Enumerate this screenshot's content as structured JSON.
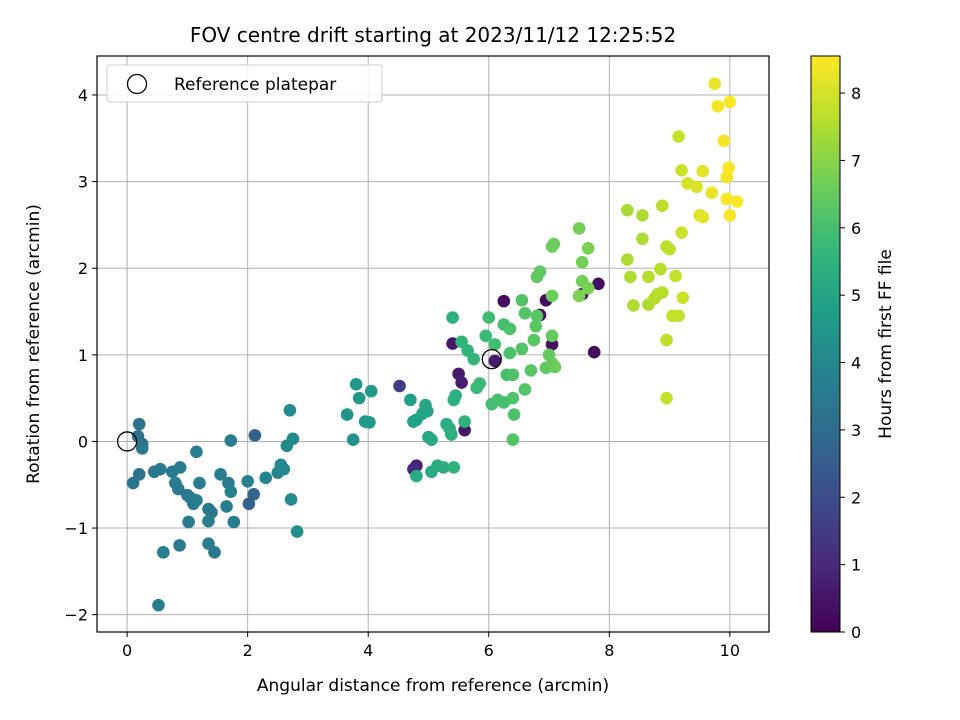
{
  "chart_data": {
    "type": "scatter",
    "title": "FOV centre drift starting at 2023/11/12 12:25:52",
    "xlabel": "Angular distance from reference (arcmin)",
    "ylabel": "Rotation from reference (arcmin)",
    "xlim": [
      -0.5,
      10.65
    ],
    "ylim": [
      -2.2,
      4.45
    ],
    "xticks": [
      "0",
      "2",
      "4",
      "6",
      "8",
      "10"
    ],
    "xtick_values": [
      0,
      2,
      4,
      6,
      8,
      10
    ],
    "yticks": [
      "−2",
      "−1",
      "0",
      "1",
      "2",
      "3",
      "4"
    ],
    "ytick_values": [
      -2,
      -1,
      0,
      1,
      2,
      3,
      4
    ],
    "grid": true,
    "legend": {
      "placement": "top-left",
      "entries": [
        {
          "label": "Reference platepar",
          "marker": "open-circle"
        }
      ]
    },
    "colormap": "viridis",
    "colorbar": {
      "label": "Hours from first FF file",
      "range": [
        0,
        8.55
      ],
      "ticks": [
        "0",
        "1",
        "2",
        "3",
        "4",
        "5",
        "6",
        "7",
        "8"
      ],
      "tick_values": [
        0,
        1,
        2,
        3,
        4,
        5,
        6,
        7,
        8
      ]
    },
    "reference_points": [
      {
        "x": 0,
        "y": 0
      },
      {
        "x": 6.05,
        "y": 0.95
      }
    ],
    "points": [
      {
        "x": 6.25,
        "y": 1.62,
        "c": 0.3
      },
      {
        "x": 6.95,
        "y": 1.63,
        "c": 0.3
      },
      {
        "x": 6.85,
        "y": 1.46,
        "c": 0.3
      },
      {
        "x": 7.82,
        "y": 1.82,
        "c": 0.35
      },
      {
        "x": 7.75,
        "y": 1.03,
        "c": 0.3
      },
      {
        "x": 7.05,
        "y": 1.12,
        "c": 0.4
      },
      {
        "x": 7.55,
        "y": 1.7,
        "c": 0.45
      },
      {
        "x": 5.4,
        "y": 1.13,
        "c": 0.5
      },
      {
        "x": 5.6,
        "y": 0.13,
        "c": 0.5
      },
      {
        "x": 5.5,
        "y": 0.78,
        "c": 0.6
      },
      {
        "x": 5.55,
        "y": 0.68,
        "c": 0.7
      },
      {
        "x": 6.1,
        "y": 0.93,
        "c": 0.6
      },
      {
        "x": 4.8,
        "y": -0.28,
        "c": 0.8
      },
      {
        "x": 4.75,
        "y": -0.32,
        "c": 1.0
      },
      {
        "x": 4.52,
        "y": 0.64,
        "c": 1.5
      },
      {
        "x": 2.12,
        "y": 0.07,
        "c": 2.7
      },
      {
        "x": 2.02,
        "y": -0.72,
        "c": 2.6
      },
      {
        "x": 2.1,
        "y": -0.61,
        "c": 2.8
      },
      {
        "x": 0.18,
        "y": 0.06,
        "c": 3.2
      },
      {
        "x": 0.2,
        "y": 0.2,
        "c": 3.3
      },
      {
        "x": 0.25,
        "y": -0.03,
        "c": 3.3
      },
      {
        "x": 0.25,
        "y": -0.08,
        "c": 3.4
      },
      {
        "x": 0.1,
        "y": -0.48,
        "c": 3.3
      },
      {
        "x": 0.2,
        "y": -0.38,
        "c": 3.3
      },
      {
        "x": 0.45,
        "y": -0.35,
        "c": 3.4
      },
      {
        "x": 0.55,
        "y": -0.32,
        "c": 3.5
      },
      {
        "x": 0.75,
        "y": -0.35,
        "c": 3.5
      },
      {
        "x": 0.88,
        "y": -0.3,
        "c": 3.5
      },
      {
        "x": 0.8,
        "y": -0.48,
        "c": 3.6
      },
      {
        "x": 0.85,
        "y": -0.55,
        "c": 3.5
      },
      {
        "x": 1.0,
        "y": -0.62,
        "c": 3.4
      },
      {
        "x": 1.05,
        "y": -0.65,
        "c": 3.5
      },
      {
        "x": 1.1,
        "y": -0.72,
        "c": 3.5
      },
      {
        "x": 1.15,
        "y": -0.68,
        "c": 3.6
      },
      {
        "x": 1.02,
        "y": -0.93,
        "c": 3.5
      },
      {
        "x": 1.2,
        "y": -0.48,
        "c": 3.6
      },
      {
        "x": 1.15,
        "y": -0.12,
        "c": 3.6
      },
      {
        "x": 0.6,
        "y": -1.28,
        "c": 3.6
      },
      {
        "x": 0.87,
        "y": -1.2,
        "c": 3.5
      },
      {
        "x": 1.35,
        "y": -0.78,
        "c": 3.5
      },
      {
        "x": 1.4,
        "y": -0.82,
        "c": 3.4
      },
      {
        "x": 1.35,
        "y": -0.92,
        "c": 3.6
      },
      {
        "x": 1.35,
        "y": -1.18,
        "c": 3.6
      },
      {
        "x": 1.45,
        "y": -1.28,
        "c": 3.4
      },
      {
        "x": 0.52,
        "y": -1.89,
        "c": 3.6
      },
      {
        "x": 1.55,
        "y": -0.38,
        "c": 3.6
      },
      {
        "x": 1.68,
        "y": -0.48,
        "c": 3.5
      },
      {
        "x": 1.72,
        "y": -0.58,
        "c": 3.7
      },
      {
        "x": 1.65,
        "y": -0.75,
        "c": 3.6
      },
      {
        "x": 1.77,
        "y": -0.93,
        "c": 3.7
      },
      {
        "x": 1.72,
        "y": 0.01,
        "c": 3.6
      },
      {
        "x": 2.0,
        "y": -0.46,
        "c": 3.8
      },
      {
        "x": 2.3,
        "y": -0.42,
        "c": 3.9
      },
      {
        "x": 2.5,
        "y": -0.36,
        "c": 3.9
      },
      {
        "x": 2.6,
        "y": -0.32,
        "c": 4.0
      },
      {
        "x": 2.65,
        "y": -0.05,
        "c": 4.0
      },
      {
        "x": 2.55,
        "y": -0.27,
        "c": 4.0
      },
      {
        "x": 2.75,
        "y": 0.03,
        "c": 4.1
      },
      {
        "x": 2.7,
        "y": 0.36,
        "c": 4.1
      },
      {
        "x": 2.72,
        "y": -0.67,
        "c": 4.1
      },
      {
        "x": 2.82,
        "y": -1.04,
        "c": 4.2
      },
      {
        "x": 3.75,
        "y": 0.02,
        "c": 4.3
      },
      {
        "x": 3.65,
        "y": 0.31,
        "c": 4.4
      },
      {
        "x": 3.8,
        "y": 0.66,
        "c": 4.5
      },
      {
        "x": 3.85,
        "y": 0.5,
        "c": 4.5
      },
      {
        "x": 3.95,
        "y": 0.23,
        "c": 4.5
      },
      {
        "x": 4.02,
        "y": 0.22,
        "c": 4.6
      },
      {
        "x": 4.05,
        "y": 0.58,
        "c": 4.6
      },
      {
        "x": 4.7,
        "y": 0.48,
        "c": 4.8
      },
      {
        "x": 4.8,
        "y": 0.25,
        "c": 4.9
      },
      {
        "x": 4.75,
        "y": 0.23,
        "c": 4.9
      },
      {
        "x": 4.9,
        "y": 0.32,
        "c": 5.0
      },
      {
        "x": 4.95,
        "y": 0.42,
        "c": 5.0
      },
      {
        "x": 4.98,
        "y": 0.35,
        "c": 5.0
      },
      {
        "x": 5.0,
        "y": 0.05,
        "c": 5.1
      },
      {
        "x": 5.05,
        "y": 0.02,
        "c": 5.1
      },
      {
        "x": 5.05,
        "y": -0.35,
        "c": 5.2
      },
      {
        "x": 5.15,
        "y": -0.28,
        "c": 5.2
      },
      {
        "x": 4.8,
        "y": -0.4,
        "c": 5.2
      },
      {
        "x": 5.25,
        "y": -0.3,
        "c": 5.3
      },
      {
        "x": 5.3,
        "y": 0.2,
        "c": 5.3
      },
      {
        "x": 5.35,
        "y": 0.15,
        "c": 5.3
      },
      {
        "x": 5.38,
        "y": 0.08,
        "c": 5.4
      },
      {
        "x": 5.42,
        "y": 0.48,
        "c": 5.4
      },
      {
        "x": 5.45,
        "y": 0.53,
        "c": 5.4
      },
      {
        "x": 5.4,
        "y": 1.43,
        "c": 5.4
      },
      {
        "x": 5.42,
        "y": -0.3,
        "c": 5.5
      },
      {
        "x": 5.6,
        "y": 0.23,
        "c": 5.5
      },
      {
        "x": 5.55,
        "y": 1.15,
        "c": 5.6
      },
      {
        "x": 5.65,
        "y": 1.05,
        "c": 5.6
      },
      {
        "x": 5.75,
        "y": 0.95,
        "c": 5.7
      },
      {
        "x": 5.8,
        "y": 0.62,
        "c": 5.7
      },
      {
        "x": 5.85,
        "y": 0.67,
        "c": 5.8
      },
      {
        "x": 5.95,
        "y": 1.22,
        "c": 5.8
      },
      {
        "x": 6.0,
        "y": 1.43,
        "c": 5.9
      },
      {
        "x": 6.05,
        "y": 0.43,
        "c": 5.9
      },
      {
        "x": 6.1,
        "y": 1.12,
        "c": 5.9
      },
      {
        "x": 6.15,
        "y": 0.48,
        "c": 6.0
      },
      {
        "x": 6.25,
        "y": 1.35,
        "c": 6.0
      },
      {
        "x": 6.25,
        "y": 0.45,
        "c": 6.0
      },
      {
        "x": 6.3,
        "y": 0.77,
        "c": 6.0
      },
      {
        "x": 6.35,
        "y": 1.3,
        "c": 6.1
      },
      {
        "x": 6.4,
        "y": 0.5,
        "c": 6.1
      },
      {
        "x": 6.35,
        "y": 1.02,
        "c": 6.1
      },
      {
        "x": 6.4,
        "y": 0.77,
        "c": 6.1
      },
      {
        "x": 6.42,
        "y": 0.31,
        "c": 6.1
      },
      {
        "x": 6.4,
        "y": 0.02,
        "c": 6.2
      },
      {
        "x": 6.55,
        "y": 1.07,
        "c": 6.2
      },
      {
        "x": 6.55,
        "y": 1.63,
        "c": 6.2
      },
      {
        "x": 6.6,
        "y": 1.48,
        "c": 6.2
      },
      {
        "x": 6.6,
        "y": 0.6,
        "c": 6.2
      },
      {
        "x": 6.7,
        "y": 0.82,
        "c": 6.3
      },
      {
        "x": 6.75,
        "y": 1.17,
        "c": 6.3
      },
      {
        "x": 6.78,
        "y": 1.33,
        "c": 6.3
      },
      {
        "x": 6.8,
        "y": 1.45,
        "c": 6.3
      },
      {
        "x": 6.8,
        "y": 1.9,
        "c": 6.4
      },
      {
        "x": 6.85,
        "y": 1.96,
        "c": 6.4
      },
      {
        "x": 6.95,
        "y": 0.85,
        "c": 6.4
      },
      {
        "x": 7.0,
        "y": 1.0,
        "c": 6.5
      },
      {
        "x": 7.05,
        "y": 0.9,
        "c": 6.5
      },
      {
        "x": 7.05,
        "y": 1.22,
        "c": 6.5
      },
      {
        "x": 7.05,
        "y": 1.68,
        "c": 6.6
      },
      {
        "x": 7.05,
        "y": 2.25,
        "c": 6.6
      },
      {
        "x": 7.08,
        "y": 2.28,
        "c": 6.6
      },
      {
        "x": 7.1,
        "y": 0.86,
        "c": 6.6
      },
      {
        "x": 7.5,
        "y": 2.46,
        "c": 6.7
      },
      {
        "x": 7.55,
        "y": 2.07,
        "c": 6.7
      },
      {
        "x": 7.55,
        "y": 1.85,
        "c": 6.7
      },
      {
        "x": 7.5,
        "y": 1.68,
        "c": 6.8
      },
      {
        "x": 7.65,
        "y": 1.77,
        "c": 6.8
      },
      {
        "x": 7.65,
        "y": 2.23,
        "c": 6.8
      },
      {
        "x": 8.3,
        "y": 2.67,
        "c": 7.4
      },
      {
        "x": 8.3,
        "y": 2.1,
        "c": 7.5
      },
      {
        "x": 8.35,
        "y": 1.9,
        "c": 7.5
      },
      {
        "x": 8.4,
        "y": 1.57,
        "c": 7.5
      },
      {
        "x": 8.55,
        "y": 2.34,
        "c": 7.5
      },
      {
        "x": 8.55,
        "y": 2.61,
        "c": 7.5
      },
      {
        "x": 8.65,
        "y": 1.58,
        "c": 7.5
      },
      {
        "x": 8.65,
        "y": 1.9,
        "c": 7.6
      },
      {
        "x": 8.75,
        "y": 1.65,
        "c": 7.6
      },
      {
        "x": 8.8,
        "y": 1.7,
        "c": 7.6
      },
      {
        "x": 8.85,
        "y": 1.99,
        "c": 7.6
      },
      {
        "x": 8.88,
        "y": 1.72,
        "c": 7.6
      },
      {
        "x": 8.88,
        "y": 2.72,
        "c": 7.7
      },
      {
        "x": 8.95,
        "y": 2.25,
        "c": 7.7
      },
      {
        "x": 9.0,
        "y": 2.22,
        "c": 7.7
      },
      {
        "x": 8.95,
        "y": 1.17,
        "c": 7.7
      },
      {
        "x": 8.95,
        "y": 0.5,
        "c": 7.8
      },
      {
        "x": 9.05,
        "y": 1.45,
        "c": 7.8
      },
      {
        "x": 9.1,
        "y": 1.91,
        "c": 7.8
      },
      {
        "x": 9.15,
        "y": 1.45,
        "c": 7.8
      },
      {
        "x": 9.15,
        "y": 3.52,
        "c": 7.8
      },
      {
        "x": 9.2,
        "y": 3.13,
        "c": 7.9
      },
      {
        "x": 9.2,
        "y": 2.41,
        "c": 7.9
      },
      {
        "x": 9.22,
        "y": 1.66,
        "c": 7.9
      },
      {
        "x": 9.3,
        "y": 2.98,
        "c": 8.0
      },
      {
        "x": 9.45,
        "y": 2.94,
        "c": 8.1
      },
      {
        "x": 9.5,
        "y": 2.61,
        "c": 8.1
      },
      {
        "x": 9.55,
        "y": 3.12,
        "c": 8.2
      },
      {
        "x": 9.55,
        "y": 2.59,
        "c": 8.2
      },
      {
        "x": 9.7,
        "y": 2.87,
        "c": 8.3
      },
      {
        "x": 9.75,
        "y": 4.13,
        "c": 8.3
      },
      {
        "x": 9.8,
        "y": 3.87,
        "c": 8.4
      },
      {
        "x": 9.9,
        "y": 3.47,
        "c": 8.4
      },
      {
        "x": 9.95,
        "y": 3.05,
        "c": 8.4
      },
      {
        "x": 9.98,
        "y": 3.16,
        "c": 8.5
      },
      {
        "x": 9.95,
        "y": 2.8,
        "c": 8.5
      },
      {
        "x": 10.0,
        "y": 2.61,
        "c": 8.5
      },
      {
        "x": 10.0,
        "y": 3.92,
        "c": 8.5
      },
      {
        "x": 10.12,
        "y": 2.77,
        "c": 8.55
      }
    ]
  }
}
